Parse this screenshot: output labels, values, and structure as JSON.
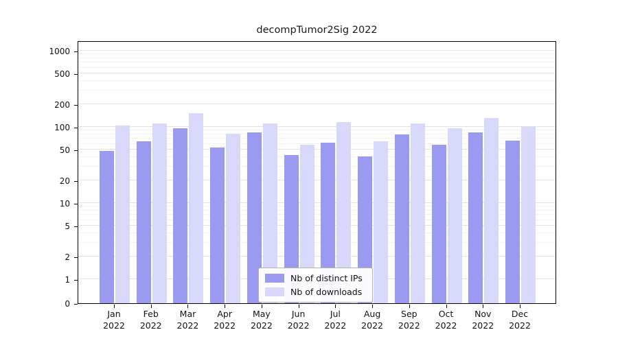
{
  "chart_data": {
    "type": "bar",
    "title": "decompTumor2Sig 2022",
    "yscale": "logarithmic above 1, linear 0-1",
    "ylim": [
      0,
      1400
    ],
    "yticks": [
      0,
      1,
      2,
      5,
      10,
      20,
      50,
      100,
      200,
      500,
      1000
    ],
    "grid": true,
    "legend_position": "inside-bottom-center",
    "categories": [
      {
        "month": "Jan",
        "year": "2022"
      },
      {
        "month": "Feb",
        "year": "2022"
      },
      {
        "month": "Mar",
        "year": "2022"
      },
      {
        "month": "Apr",
        "year": "2022"
      },
      {
        "month": "May",
        "year": "2022"
      },
      {
        "month": "Jun",
        "year": "2022"
      },
      {
        "month": "Jul",
        "year": "2022"
      },
      {
        "month": "Aug",
        "year": "2022"
      },
      {
        "month": "Sep",
        "year": "2022"
      },
      {
        "month": "Oct",
        "year": "2022"
      },
      {
        "month": "Nov",
        "year": "2022"
      },
      {
        "month": "Dec",
        "year": "2022"
      }
    ],
    "series": [
      {
        "name": "Nb of distinct IPs",
        "color": "#9a9af0",
        "values": [
          48,
          65,
          95,
          54,
          85,
          43,
          62,
          41,
          80,
          58,
          85,
          66
        ]
      },
      {
        "name": "Nb of downloads",
        "color": "#d8d8fa",
        "values": [
          104,
          112,
          150,
          82,
          110,
          58,
          115,
          65,
          112,
          95,
          130,
          103
        ]
      }
    ]
  }
}
